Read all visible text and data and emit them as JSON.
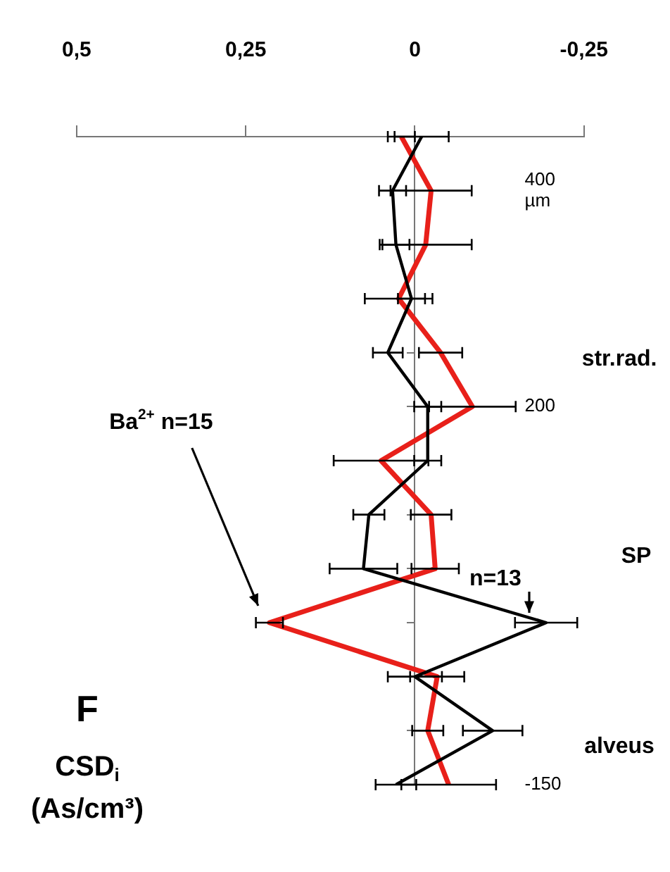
{
  "chart_data": {
    "type": "line",
    "title": "F",
    "xlabel": "CSD$_{i}$\n(As/cm³)",
    "series": [
      {
        "name": "n=13",
        "color": "#000000",
        "x": [
          0.028,
          -0.115,
          0,
          -0.194,
          0.076,
          0.068,
          -0.019,
          -0.019,
          0.04,
          0.005,
          0.028,
          0.033,
          -0.01
        ],
        "values": [
          -150,
          -100,
          -50,
          0,
          50,
          100,
          150,
          200,
          250,
          300,
          350,
          400,
          450
        ],
        "xerrors": [
          0.03,
          0.044,
          0.04,
          0.046,
          0.05,
          0.023,
          0.02,
          0.02,
          0.022,
          0.02,
          0.02,
          0.02,
          0.04
        ]
      },
      {
        "name": "Ba$^{2+}$ n=15",
        "color": "#e8201a",
        "x": [
          -0.05,
          -0.019,
          -0.033,
          0.215,
          -0.03,
          -0.024,
          0.05,
          -0.085,
          -0.038,
          0.024,
          -0.016,
          -0.024,
          0.02
        ],
        "values": [
          -150,
          -100,
          -50,
          0,
          50,
          100,
          150,
          200,
          250,
          300,
          350,
          400,
          450
        ],
        "xerrors": [
          0.07,
          0.023,
          0.04,
          0.02,
          0.035,
          0.03,
          0.07,
          0.064,
          0.032,
          0.05,
          0.068,
          0.06,
          0.02
        ]
      }
    ],
    "ylim": [
      -150,
      450
    ],
    "yticks": [
      -150,
      {
        "value": -100,
        "label": null
      },
      {
        "value": -50,
        "label": null
      },
      {
        "value": 0,
        "label": null
      },
      {
        "value": 50,
        "label": null
      },
      {
        "value": 100,
        "label": null
      },
      {
        "value": 150,
        "label": null
      },
      200,
      {
        "value": 250,
        "label": null
      },
      {
        "value": 300,
        "label": null
      },
      {
        "value": 350,
        "label": null
      },
      {
        "value": 400,
        "label": "400\nµm"
      },
      {
        "value": 450,
        "label": null
      }
    ],
    "xlim": [
      0.5,
      -0.25
    ],
    "xticks": [
      {
        "value": 0.5,
        "label": "0,5"
      },
      {
        "value": 0.25,
        "label": "0,25"
      },
      {
        "value": 0,
        "label": "0"
      },
      {
        "value": -0.25,
        "label": "-0,25"
      }
    ],
    "annotations": [
      "alveus",
      "SP",
      "str.rad."
    ]
  }
}
